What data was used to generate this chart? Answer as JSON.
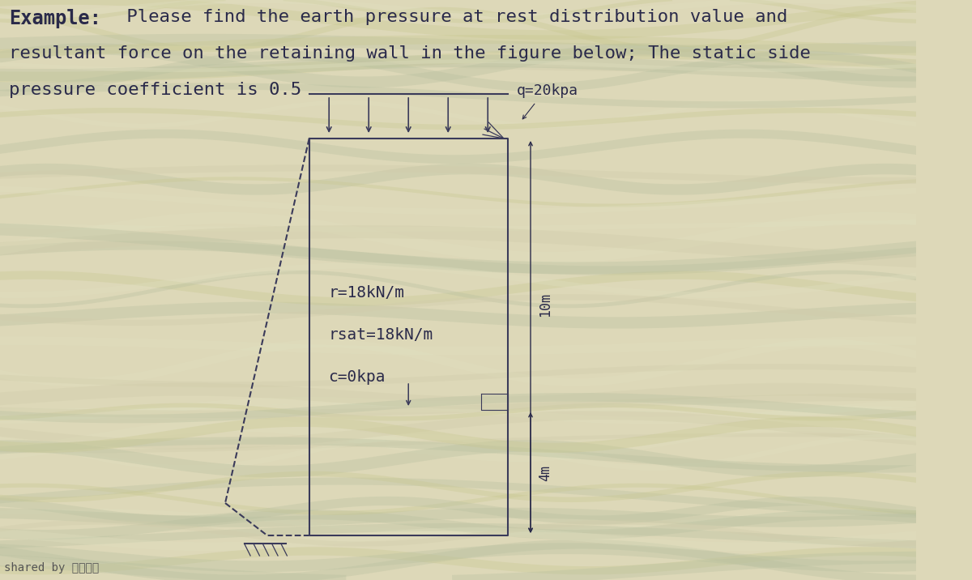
{
  "bg_color": "#ddd8b8",
  "wall_color": "#3a3a5a",
  "wall_linewidth": 1.5,
  "label_q": "q=20kpa",
  "label_r": "r=18kN/m",
  "label_rsat": "rsat=18kN/m",
  "label_c": "c=0kpa",
  "label_10m": "10m",
  "label_4m": "4m",
  "shared_text": "shared by 往日时光",
  "text_color": "#2a2a4a",
  "title_example": "Example:",
  "title_rest": " Please find the earth pressure at rest distribution value and",
  "title_line2": "resultant force on the retaining wall in the figure below; The static side",
  "title_line3": "pressure coefficient is 0.5",
  "font_size_title": 17,
  "font_size_label": 13,
  "font_size_dim": 12
}
